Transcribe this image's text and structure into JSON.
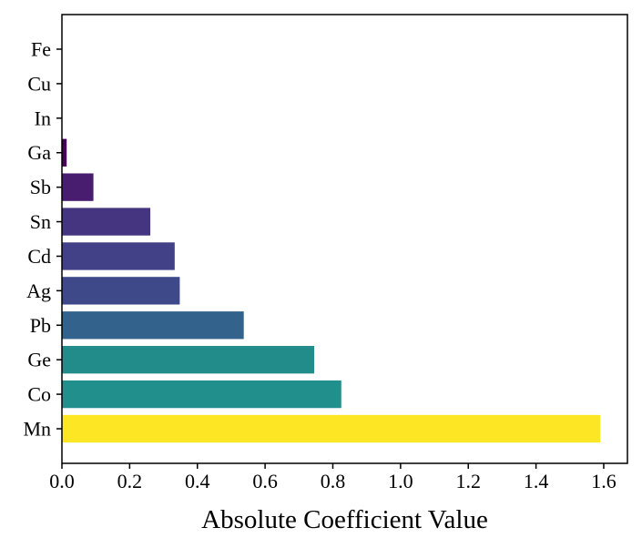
{
  "chart_data": {
    "type": "bar",
    "orientation": "horizontal",
    "categories": [
      "Mn",
      "Co",
      "Ge",
      "Pb",
      "Ag",
      "Cd",
      "Sn",
      "Sb",
      "Ga",
      "In",
      "Cu",
      "Fe"
    ],
    "values": [
      1.59,
      0.825,
      0.745,
      0.537,
      0.348,
      0.333,
      0.261,
      0.093,
      0.014,
      0.0,
      0.0,
      0.0
    ],
    "colors": [
      "#fde725",
      "#21908d",
      "#228c8b",
      "#33638d",
      "#3e4989",
      "#424086",
      "#453581",
      "#481c6e",
      "#440154",
      "#440154",
      "#440154",
      "#440154"
    ],
    "title": "",
    "xlabel": "Absolute Coefficient Value",
    "ylabel": "",
    "xlim": [
      0.0,
      1.67
    ],
    "xticks": [
      0.0,
      0.2,
      0.4,
      0.6,
      0.8,
      1.0,
      1.2,
      1.4,
      1.6
    ],
    "xtick_labels": [
      "0.0",
      "0.2",
      "0.4",
      "0.6",
      "0.8",
      "1.0",
      "1.2",
      "1.4",
      "1.6"
    ],
    "grid": false,
    "legend": "none"
  }
}
